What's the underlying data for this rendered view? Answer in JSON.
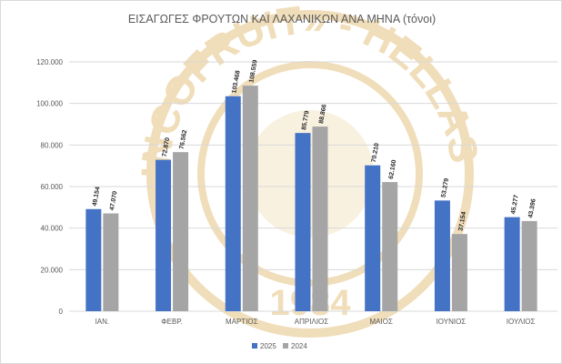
{
  "chart_data": {
    "type": "bar",
    "title": "ΕΙΣΑΓΩΓΕΣ ΦΡΟΥΤΩΝ ΚΑΙ ΛΑΧΑΝΙΚΩΝ ΑΝΑ ΜΗΝΑ (τόνοι)",
    "categories": [
      "ΙΑΝ.",
      "ΦΕΒΡ.",
      "ΜΑΡΤΙΟΣ",
      "ΑΠΡΙΛΙΟΣ",
      "ΜΑΙΟΣ",
      "ΙΟΥΝΙΟΣ",
      "ΙΟΥΛΙΟΣ"
    ],
    "series": [
      {
        "name": "2025",
        "color": "#4472c4",
        "values": [
          49154,
          72870,
          103468,
          85779,
          70210,
          53279,
          45277
        ],
        "labels": [
          "49.154",
          "72.870",
          "103.468",
          "85.779",
          "70.210",
          "53.279",
          "45.277"
        ]
      },
      {
        "name": "2024",
        "color": "#a5a5a5",
        "values": [
          47070,
          76562,
          108559,
          88866,
          62160,
          37154,
          43396
        ],
        "labels": [
          "47.070",
          "76.562",
          "108.559",
          "88.866",
          "62.160",
          "37.154",
          "43.396"
        ]
      }
    ],
    "yticks": [
      "0",
      "20.000",
      "40.000",
      "60.000",
      "80.000",
      "100.000",
      "120.000"
    ],
    "ylim": [
      0,
      120000
    ],
    "grid": true,
    "legend": "bottom",
    "watermark": "«INCOFRUIT» - HELLAS 1984"
  }
}
